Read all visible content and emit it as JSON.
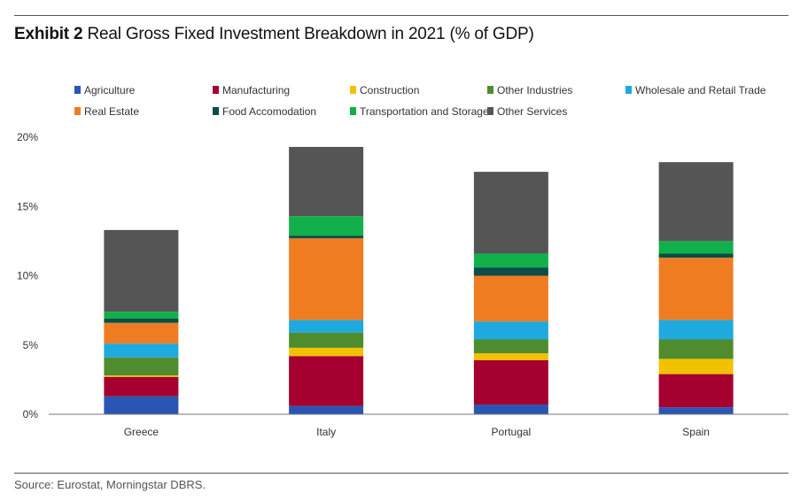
{
  "title": {
    "lead": "Exhibit 2",
    "text": "Real Gross Fixed Investment Breakdown in 2021 (% of GDP)"
  },
  "source": "Source: Eurostat, Morningstar DBRS.",
  "chart_data": {
    "type": "bar",
    "stacked": true,
    "categories": [
      "Greece",
      "Italy",
      "Portugal",
      "Spain"
    ],
    "y_ticks": [
      "0%",
      "5%",
      "10%",
      "15%",
      "20%"
    ],
    "ylim": [
      0,
      20
    ],
    "grid": false,
    "legend_position": "top",
    "series": [
      {
        "name": "Agriculture",
        "color": "#2a56b3",
        "values": [
          1.3,
          0.6,
          0.7,
          0.5
        ]
      },
      {
        "name": "Manufacturing",
        "color": "#a5002f",
        "values": [
          1.4,
          3.6,
          3.2,
          2.4
        ]
      },
      {
        "name": "Construction",
        "color": "#f2c200",
        "values": [
          0.1,
          0.6,
          0.5,
          1.1
        ]
      },
      {
        "name": "Other Industries",
        "color": "#4e8c2e",
        "values": [
          1.3,
          1.1,
          1.0,
          1.4
        ]
      },
      {
        "name": "Wholesale and Retail Trade",
        "color": "#1ea9df",
        "values": [
          1.0,
          0.9,
          1.3,
          1.4
        ]
      },
      {
        "name": "Real Estate",
        "color": "#f07c22",
        "values": [
          1.5,
          5.9,
          3.3,
          4.5
        ]
      },
      {
        "name": "Food Accomodation",
        "color": "#0a4d49",
        "values": [
          0.3,
          0.2,
          0.6,
          0.3
        ]
      },
      {
        "name": "Transportation and Storage",
        "color": "#12b04a",
        "values": [
          0.5,
          1.4,
          1.0,
          0.9
        ]
      },
      {
        "name": "Other Services",
        "color": "#555555",
        "values": [
          5.9,
          5.0,
          5.9,
          5.7
        ]
      }
    ]
  }
}
